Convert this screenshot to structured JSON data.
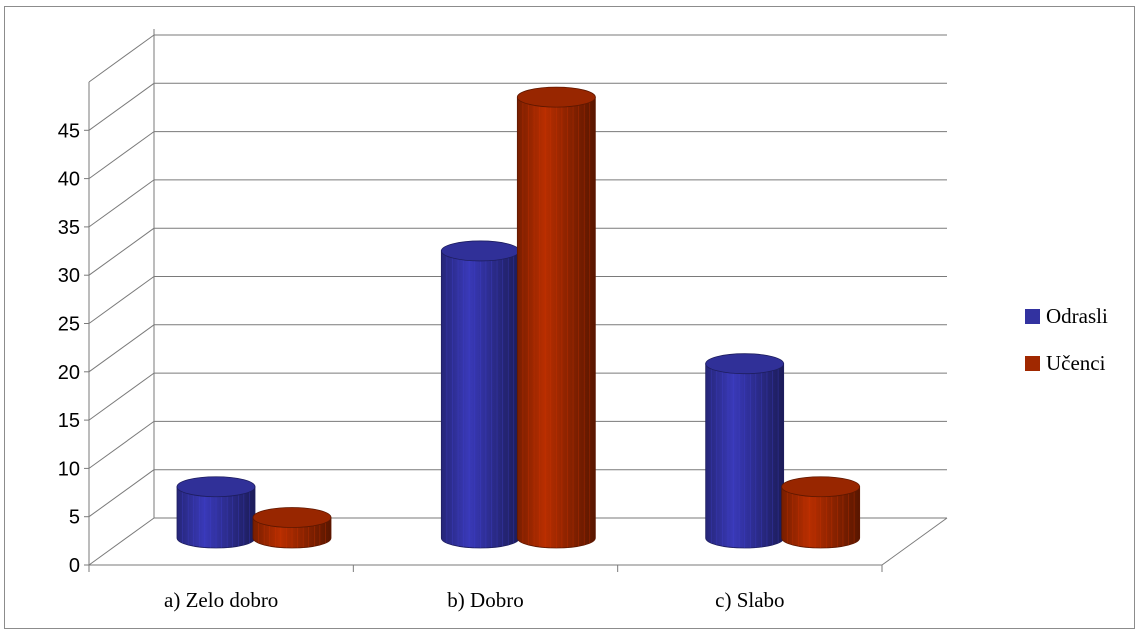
{
  "chart_data": {
    "type": "bar",
    "style": "3d-cylinder",
    "categories": [
      "a) Zelo dobro",
      "b) Dobro",
      "c) Slabo"
    ],
    "series": [
      {
        "name": "Odrasli",
        "values": [
          5,
          28,
          17
        ],
        "color": "#3232a0"
      },
      {
        "name": "Učenci",
        "values": [
          2,
          43,
          5
        ],
        "color": "#a02800"
      }
    ],
    "yticks": [
      "0",
      "5",
      "10",
      "15",
      "20",
      "25",
      "30",
      "35",
      "40",
      "45"
    ],
    "ylim": [
      0,
      50
    ],
    "grid": true,
    "legend": "right"
  }
}
